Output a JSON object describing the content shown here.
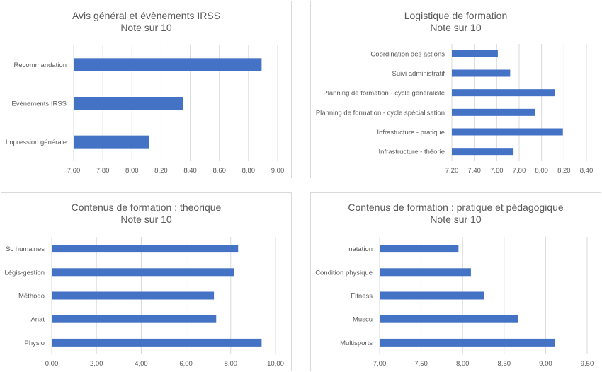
{
  "colors": {
    "bar": "#4472C4",
    "grid": "#d9d9d9",
    "text": "#595959",
    "border": "#d9d9d9"
  },
  "chart_data": [
    {
      "type": "bar",
      "orientation": "horizontal",
      "title": "Avis général et évènements IRSS",
      "subtitle": "Note sur 10",
      "categories": [
        "Recommandation",
        "Evènements IRSS",
        "Impression générale"
      ],
      "values": [
        8.89,
        8.35,
        8.12
      ],
      "xlim": [
        7.6,
        9.0
      ],
      "xticks": [
        "7,60",
        "7,80",
        "8,00",
        "8,20",
        "8,40",
        "8,60",
        "8,80",
        "9,00"
      ],
      "grid": true
    },
    {
      "type": "bar",
      "orientation": "horizontal",
      "title": "Logistique de formation",
      "subtitle": "Note sur 10",
      "categories": [
        "Coordination des actions",
        "Suivi administratif",
        "Planning de formation - cycle généraliste",
        "Planning de formation - cycle spécialisation",
        "Infrastucture - pratique",
        "Infrastructure - théorie"
      ],
      "values": [
        7.61,
        7.72,
        8.12,
        7.94,
        8.19,
        7.75
      ],
      "xlim": [
        7.2,
        8.4
      ],
      "xticks": [
        "7,20",
        "7,40",
        "7,60",
        "7,80",
        "8,00",
        "8,20",
        "8,40"
      ],
      "grid": true
    },
    {
      "type": "bar",
      "orientation": "horizontal",
      "title": "Contenus de formation : théorique",
      "subtitle": "Note sur 10",
      "categories": [
        "Sc humaines",
        "Légis-gestion",
        "Méthodo",
        "Anat",
        "Physio"
      ],
      "values": [
        8.33,
        8.15,
        7.25,
        7.35,
        9.38
      ],
      "xlim": [
        0,
        10
      ],
      "xticks": [
        "0,00",
        "2,00",
        "4,00",
        "6,00",
        "8,00",
        "10,00"
      ],
      "grid": true
    },
    {
      "type": "bar",
      "orientation": "horizontal",
      "title": "Contenus de formation : pratique et pédagogique",
      "subtitle": "Note sur 10",
      "categories": [
        "natation",
        "Condition physique",
        "Fitness",
        "Muscu",
        "Multisports"
      ],
      "values": [
        7.95,
        8.1,
        8.26,
        8.67,
        9.11
      ],
      "xlim": [
        7.0,
        9.5
      ],
      "xticks": [
        "7,00",
        "7,50",
        "8,00",
        "8,50",
        "9,00",
        "9,50"
      ],
      "grid": true
    }
  ]
}
